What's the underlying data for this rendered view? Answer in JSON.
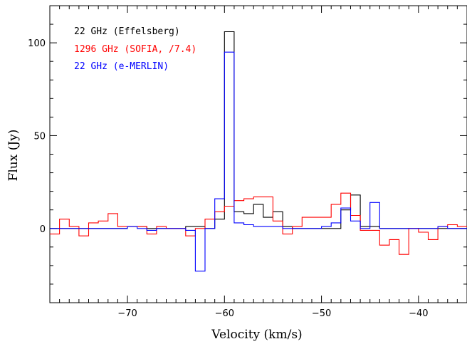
{
  "chart_data": {
    "type": "line",
    "xlabel": "Velocity (km/s)",
    "ylabel": "Flux (Jy)",
    "xlim": [
      -78,
      -35
    ],
    "ylim": [
      -40,
      120
    ],
    "x_ticks": [
      -70,
      -60,
      -50,
      -40
    ],
    "x_tick_labels": [
      "−70",
      "−60",
      "−50",
      "−40"
    ],
    "y_ticks": [
      0,
      50,
      100
    ],
    "y_tick_labels": [
      "0",
      "50",
      "100"
    ],
    "grid": false,
    "legend_position": "top-left",
    "series": [
      {
        "name": "22 GHz (Effelsberg)",
        "color": "#000000",
        "x": [
          -78,
          -76,
          -74,
          -72,
          -70,
          -68,
          -66,
          -64,
          -63,
          -62,
          -61,
          -60,
          -59,
          -58,
          -57,
          -56,
          -55,
          -54,
          -53,
          -52,
          -51,
          -50,
          -49,
          -48,
          -47,
          -46,
          -45,
          -44,
          -43,
          -42,
          -41,
          -40,
          -39,
          -38,
          -37,
          -36
        ],
        "y": [
          0,
          0,
          0,
          0,
          1,
          0,
          0,
          1,
          1,
          0,
          5,
          106,
          9,
          8,
          13,
          6,
          9,
          1,
          0,
          0,
          0,
          0,
          0,
          10,
          18,
          1,
          1,
          0,
          0,
          0,
          0,
          0,
          0,
          0,
          0,
          0
        ]
      },
      {
        "name": "1296 GHz (SOFIA, /7.4)",
        "color": "#ff0000",
        "x": [
          -78,
          -77,
          -76,
          -75,
          -74,
          -73,
          -72,
          -71,
          -70,
          -69,
          -68,
          -67,
          -66,
          -65,
          -64,
          -63,
          -62,
          -61,
          -60,
          -59,
          -58,
          -57,
          -56,
          -55,
          -54,
          -53,
          -52,
          -51,
          -50,
          -49,
          -48,
          -47,
          -46,
          -45,
          -44,
          -43,
          -42,
          -41,
          -40,
          -39,
          -38,
          -37,
          -36
        ],
        "y": [
          -3,
          5,
          1,
          -4,
          3,
          4,
          8,
          1,
          1,
          1,
          -3,
          1,
          0,
          0,
          -4,
          0,
          5,
          9,
          12,
          15,
          16,
          17,
          17,
          4,
          -3,
          1,
          6,
          6,
          6,
          13,
          19,
          7,
          -1,
          -1,
          -9,
          -6,
          -14,
          0,
          -2,
          -6,
          1,
          2,
          1
        ]
      },
      {
        "name": "22 GHz (e-MERLIN)",
        "color": "#0000ff",
        "x": [
          -78,
          -76,
          -74,
          -72,
          -70,
          -69,
          -68,
          -67,
          -66,
          -65,
          -64,
          -63,
          -62,
          -61,
          -60,
          -59,
          -58,
          -57,
          -56,
          -55,
          -54,
          -53,
          -52,
          -51,
          -50,
          -49,
          -48,
          -47,
          -46,
          -45,
          -44,
          -43,
          -42,
          -41,
          -40,
          -39,
          -38,
          -37,
          -36
        ],
        "y": [
          0,
          0,
          0,
          0,
          1,
          0,
          -1,
          0,
          0,
          0,
          -1,
          -23,
          0,
          16,
          95,
          3,
          2,
          1,
          1,
          1,
          0,
          0,
          0,
          0,
          1,
          3,
          11,
          4,
          0,
          14,
          0,
          0,
          0,
          0,
          0,
          0,
          1,
          0,
          0
        ]
      }
    ]
  }
}
